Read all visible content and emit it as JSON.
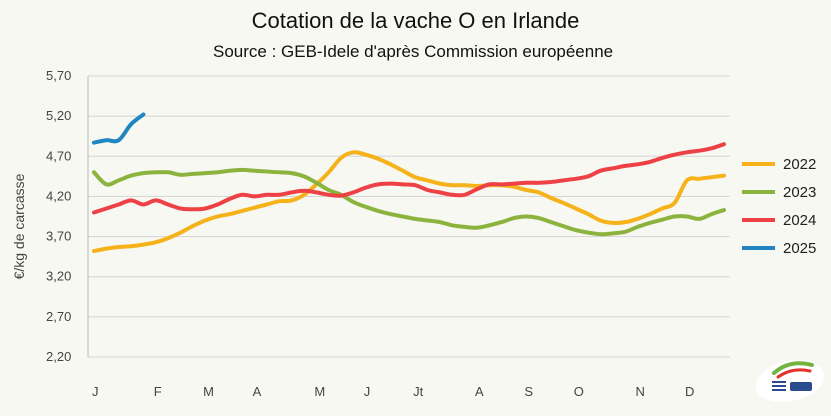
{
  "chart_data": {
    "type": "line",
    "title": "Cotation de la vache O en Irlande",
    "subtitle": "Source : GEB-Idele d'après Commission européenne",
    "ylabel": "€/kg de carcasse",
    "xlabel": "",
    "ylim": [
      2.2,
      5.7
    ],
    "yticks": [
      "2,20",
      "2,70",
      "3,20",
      "3,70",
      "4,20",
      "4,70",
      "5,20",
      "5,70"
    ],
    "ytick_values": [
      2.2,
      2.7,
      3.2,
      3.7,
      4.2,
      4.7,
      5.2,
      5.7
    ],
    "xlim": [
      1,
      52
    ],
    "month_labels": [
      "J",
      "F",
      "M",
      "A",
      "M",
      "J",
      "Jt",
      "A",
      "S",
      "O",
      "N",
      "D"
    ],
    "month_weeks": [
      1,
      6,
      10,
      14,
      19,
      23,
      27,
      32,
      36,
      40,
      45,
      49
    ],
    "grid": "horizontal",
    "legend_position": "right",
    "series": [
      {
        "name": "2022",
        "color": "#f5b21b",
        "x": [
          1,
          2,
          3,
          4,
          5,
          6,
          7,
          8,
          9,
          10,
          11,
          12,
          13,
          14,
          15,
          16,
          17,
          18,
          19,
          20,
          21,
          22,
          23,
          24,
          25,
          26,
          27,
          28,
          29,
          30,
          31,
          32,
          33,
          34,
          35,
          36,
          37,
          38,
          39,
          40,
          41,
          42,
          43,
          44,
          45,
          46,
          47,
          48,
          49,
          50,
          51,
          52
        ],
        "values": [
          3.52,
          3.55,
          3.57,
          3.58,
          3.6,
          3.63,
          3.68,
          3.75,
          3.83,
          3.9,
          3.95,
          3.98,
          4.02,
          4.06,
          4.1,
          4.14,
          4.15,
          4.22,
          4.35,
          4.5,
          4.68,
          4.75,
          4.72,
          4.67,
          4.6,
          4.52,
          4.44,
          4.4,
          4.36,
          4.34,
          4.34,
          4.33,
          4.34,
          4.34,
          4.32,
          4.28,
          4.25,
          4.18,
          4.12,
          4.05,
          3.98,
          3.9,
          3.87,
          3.88,
          3.92,
          3.98,
          4.05,
          4.12,
          4.4,
          4.42,
          4.44,
          4.46
        ]
      },
      {
        "name": "2023",
        "color": "#8db33f",
        "x": [
          1,
          2,
          3,
          4,
          5,
          6,
          7,
          8,
          9,
          10,
          11,
          12,
          13,
          14,
          15,
          16,
          17,
          18,
          19,
          20,
          21,
          22,
          23,
          24,
          25,
          26,
          27,
          28,
          29,
          30,
          31,
          32,
          33,
          34,
          35,
          36,
          37,
          38,
          39,
          40,
          41,
          42,
          43,
          44,
          45,
          46,
          47,
          48,
          49,
          50,
          51,
          52
        ],
        "values": [
          4.5,
          4.35,
          4.4,
          4.46,
          4.49,
          4.5,
          4.5,
          4.47,
          4.48,
          4.49,
          4.5,
          4.52,
          4.53,
          4.52,
          4.51,
          4.5,
          4.49,
          4.45,
          4.37,
          4.28,
          4.22,
          4.13,
          4.07,
          4.02,
          3.98,
          3.95,
          3.92,
          3.9,
          3.88,
          3.84,
          3.82,
          3.81,
          3.84,
          3.88,
          3.93,
          3.95,
          3.93,
          3.88,
          3.83,
          3.78,
          3.75,
          3.73,
          3.74,
          3.76,
          3.82,
          3.87,
          3.91,
          3.95,
          3.95,
          3.92,
          3.98,
          4.03
        ]
      },
      {
        "name": "2024",
        "color": "#ee4146",
        "x": [
          1,
          2,
          3,
          4,
          5,
          6,
          7,
          8,
          9,
          10,
          11,
          12,
          13,
          14,
          15,
          16,
          17,
          18,
          19,
          20,
          21,
          22,
          23,
          24,
          25,
          26,
          27,
          28,
          29,
          30,
          31,
          32,
          33,
          34,
          35,
          36,
          37,
          38,
          39,
          40,
          41,
          42,
          43,
          44,
          45,
          46,
          47,
          48,
          49,
          50,
          51,
          52
        ],
        "values": [
          4.0,
          4.05,
          4.1,
          4.15,
          4.1,
          4.15,
          4.1,
          4.05,
          4.04,
          4.05,
          4.1,
          4.17,
          4.22,
          4.2,
          4.22,
          4.22,
          4.25,
          4.27,
          4.25,
          4.22,
          4.21,
          4.25,
          4.31,
          4.35,
          4.36,
          4.35,
          4.34,
          4.28,
          4.25,
          4.22,
          4.22,
          4.29,
          4.35,
          4.35,
          4.36,
          4.37,
          4.37,
          4.38,
          4.4,
          4.42,
          4.45,
          4.52,
          4.55,
          4.58,
          4.6,
          4.63,
          4.68,
          4.72,
          4.75,
          4.77,
          4.8,
          4.85
        ]
      },
      {
        "name": "2025",
        "color": "#1f86c3",
        "x": [
          1,
          2,
          3,
          4,
          5
        ],
        "values": [
          4.87,
          4.9,
          4.9,
          5.1,
          5.22
        ]
      }
    ]
  }
}
